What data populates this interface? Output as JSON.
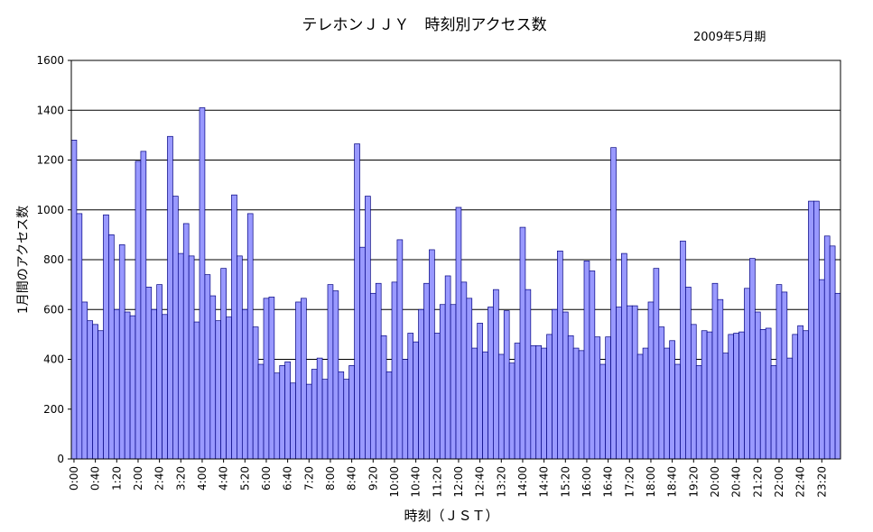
{
  "chart_data": {
    "type": "bar",
    "title": "テレホンＪＪＹ　時刻別アクセス数",
    "subtitle": "2009年5月期",
    "xlabel": "時刻（ＪＳＴ）",
    "ylabel": "1月間のアクセス数",
    "ylim": [
      0,
      1600
    ],
    "yticks": [
      0,
      200,
      400,
      600,
      800,
      1000,
      1200,
      1400,
      1600
    ],
    "grid": true,
    "bar_color": "#9999ff",
    "bar_edge": "#000080",
    "categories": [
      "0:00",
      "0:10",
      "0:20",
      "0:30",
      "0:40",
      "0:50",
      "1:00",
      "1:10",
      "1:20",
      "1:30",
      "1:40",
      "1:50",
      "2:00",
      "2:10",
      "2:20",
      "2:30",
      "2:40",
      "2:50",
      "3:00",
      "3:10",
      "3:20",
      "3:30",
      "3:40",
      "3:50",
      "4:00",
      "4:10",
      "4:20",
      "4:30",
      "4:40",
      "4:50",
      "5:00",
      "5:10",
      "5:20",
      "5:30",
      "5:40",
      "5:50",
      "6:00",
      "6:10",
      "6:20",
      "6:30",
      "6:40",
      "6:50",
      "7:00",
      "7:10",
      "7:20",
      "7:30",
      "7:40",
      "7:50",
      "8:00",
      "8:10",
      "8:20",
      "8:30",
      "8:40",
      "8:50",
      "9:00",
      "9:10",
      "9:20",
      "9:30",
      "9:40",
      "9:50",
      "10:00",
      "10:10",
      "10:20",
      "10:30",
      "10:40",
      "10:50",
      "11:00",
      "11:10",
      "11:20",
      "11:30",
      "11:40",
      "11:50",
      "12:00",
      "12:10",
      "12:20",
      "12:30",
      "12:40",
      "12:50",
      "13:00",
      "13:10",
      "13:20",
      "13:30",
      "13:40",
      "13:50",
      "14:00",
      "14:10",
      "14:20",
      "14:30",
      "14:40",
      "14:50",
      "15:00",
      "15:10",
      "15:20",
      "15:30",
      "15:40",
      "15:50",
      "16:00",
      "16:10",
      "16:20",
      "16:30",
      "16:40",
      "16:50",
      "17:00",
      "17:10",
      "17:20",
      "17:30",
      "17:40",
      "17:50",
      "18:00",
      "18:10",
      "18:20",
      "18:30",
      "18:40",
      "18:50",
      "19:00",
      "19:10",
      "19:20",
      "19:30",
      "19:40",
      "19:50",
      "20:00",
      "20:10",
      "20:20",
      "20:30",
      "20:40",
      "20:50",
      "21:00",
      "21:10",
      "21:20",
      "21:30",
      "21:40",
      "21:50",
      "22:00",
      "22:10",
      "22:20",
      "22:30",
      "22:40",
      "22:50",
      "23:00",
      "23:10",
      "23:20",
      "23:30",
      "23:40",
      "23:50"
    ],
    "tick_labels": [
      "0:00",
      "0:40",
      "1:20",
      "2:00",
      "2:40",
      "3:20",
      "4:00",
      "4:40",
      "5:20",
      "6:00",
      "6:40",
      "7:20",
      "8:00",
      "8:40",
      "9:20",
      "10:00",
      "10:40",
      "11:20",
      "12:00",
      "12:40",
      "13:20",
      "14:00",
      "14:40",
      "15:20",
      "16:00",
      "16:40",
      "17:20",
      "18:00",
      "18:40",
      "19:20",
      "20:00",
      "20:40",
      "21:20",
      "22:00",
      "22:40",
      "23:20"
    ],
    "values": [
      1280,
      985,
      630,
      555,
      540,
      515,
      980,
      900,
      600,
      860,
      590,
      575,
      1195,
      1235,
      690,
      600,
      700,
      580,
      1295,
      1055,
      825,
      945,
      815,
      550,
      1410,
      740,
      655,
      555,
      765,
      570,
      1060,
      815,
      600,
      985,
      530,
      380,
      645,
      650,
      345,
      375,
      390,
      305,
      630,
      645,
      300,
      360,
      405,
      320,
      700,
      675,
      350,
      320,
      375,
      1265,
      850,
      1055,
      665,
      705,
      495,
      350,
      710,
      880,
      400,
      505,
      470,
      600,
      705,
      840,
      505,
      620,
      735,
      620,
      1010,
      710,
      645,
      445,
      545,
      430,
      610,
      680,
      420,
      595,
      385,
      465,
      930,
      680,
      455,
      455,
      445,
      500,
      600,
      835,
      590,
      495,
      445,
      435,
      795,
      755,
      490,
      380,
      490,
      1250,
      610,
      825,
      615,
      615,
      420,
      445,
      630,
      765,
      530,
      445,
      475,
      380,
      875,
      690,
      540,
      375,
      515,
      510,
      705,
      640,
      425,
      500,
      505,
      510,
      685,
      805,
      590,
      520,
      525,
      375,
      700,
      670,
      405,
      500,
      535,
      515,
      1035,
      1035,
      720,
      895,
      855,
      665
    ]
  }
}
